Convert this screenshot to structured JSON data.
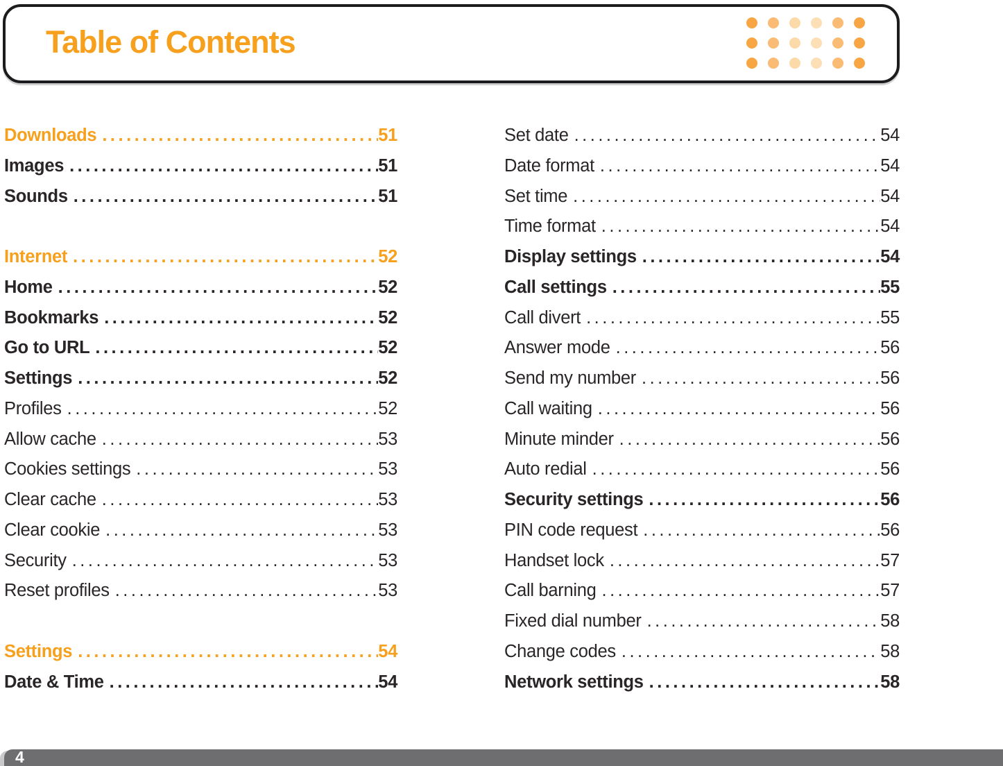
{
  "header": {
    "title": "Table of Contents",
    "accent_color": "#F7A01E",
    "dot_grid": {
      "rows": 3,
      "column_colors": [
        "#F8A643",
        "#FABB75",
        "#FCD9A8",
        "#FCDFB5",
        "#FABB75",
        "#F8A643"
      ]
    }
  },
  "toc": {
    "left_column": [
      {
        "label": "Downloads",
        "page": "51",
        "style": "section"
      },
      {
        "label": "Images",
        "page": "51",
        "style": "bold"
      },
      {
        "label": "Sounds",
        "page": "51",
        "style": "bold"
      },
      {
        "label": "",
        "page": "",
        "style": "spacer"
      },
      {
        "label": "Internet",
        "page": "52",
        "style": "section"
      },
      {
        "label": "Home",
        "page": "52",
        "style": "bold"
      },
      {
        "label": "Bookmarks",
        "page": "52",
        "style": "bold"
      },
      {
        "label": "Go to URL",
        "page": "52",
        "style": "bold"
      },
      {
        "label": "Settings",
        "page": "52",
        "style": "bold"
      },
      {
        "label": "Profiles",
        "page": "52",
        "style": "regular"
      },
      {
        "label": "Allow cache",
        "page": "53",
        "style": "regular"
      },
      {
        "label": "Cookies settings",
        "page": "53",
        "style": "regular"
      },
      {
        "label": "Clear cache",
        "page": "53",
        "style": "regular"
      },
      {
        "label": "Clear cookie",
        "page": "53",
        "style": "regular"
      },
      {
        "label": "Security",
        "page": "53",
        "style": "regular"
      },
      {
        "label": "Reset profiles",
        "page": "53",
        "style": "regular"
      },
      {
        "label": "",
        "page": "",
        "style": "spacer"
      },
      {
        "label": "Settings",
        "page": "54",
        "style": "section"
      },
      {
        "label": "Date & Time",
        "page": "54",
        "style": "bold"
      }
    ],
    "right_column": [
      {
        "label": "Set date",
        "page": "54",
        "style": "regular"
      },
      {
        "label": "Date format",
        "page": "54",
        "style": "regular"
      },
      {
        "label": "Set time",
        "page": "54",
        "style": "regular"
      },
      {
        "label": "Time format",
        "page": "54",
        "style": "regular"
      },
      {
        "label": "Display settings",
        "page": "54",
        "style": "bold"
      },
      {
        "label": "Call settings",
        "page": "55",
        "style": "bold"
      },
      {
        "label": "Call divert",
        "page": "55",
        "style": "regular"
      },
      {
        "label": "Answer mode",
        "page": "56",
        "style": "regular"
      },
      {
        "label": "Send my number",
        "page": "56",
        "style": "regular"
      },
      {
        "label": "Call waiting",
        "page": "56",
        "style": "regular"
      },
      {
        "label": "Minute minder",
        "page": "56",
        "style": "regular"
      },
      {
        "label": "Auto redial",
        "page": "56",
        "style": "regular"
      },
      {
        "label": "Security settings",
        "page": "56",
        "style": "bold"
      },
      {
        "label": "PIN code request",
        "page": "56",
        "style": "regular"
      },
      {
        "label": "Handset lock",
        "page": "57",
        "style": "regular"
      },
      {
        "label": "Call barning",
        "page": "57",
        "style": "regular"
      },
      {
        "label": "Fixed dial number",
        "page": "58",
        "style": "regular"
      },
      {
        "label": "Change codes",
        "page": "58",
        "style": "regular"
      },
      {
        "label": "Network settings",
        "page": "58",
        "style": "bold"
      }
    ]
  },
  "footer": {
    "page_number": "4",
    "bar_color": "#6E6D70"
  }
}
